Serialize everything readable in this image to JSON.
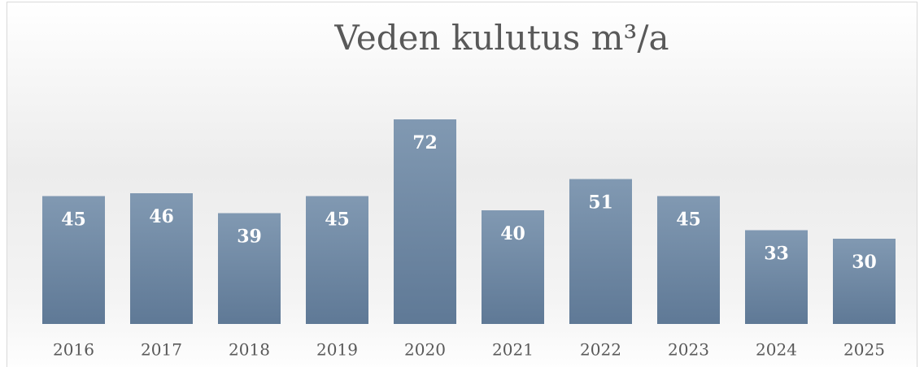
{
  "chart_data": {
    "type": "bar",
    "title": "Veden kulutus m³/a",
    "categories": [
      "2016",
      "2017",
      "2018",
      "2019",
      "2020",
      "2021",
      "2022",
      "2023",
      "2024",
      "2025"
    ],
    "values": [
      45,
      46,
      39,
      45,
      72,
      40,
      51,
      45,
      33,
      30
    ],
    "color": "#6f89a5",
    "ylim": [
      0,
      80
    ]
  }
}
